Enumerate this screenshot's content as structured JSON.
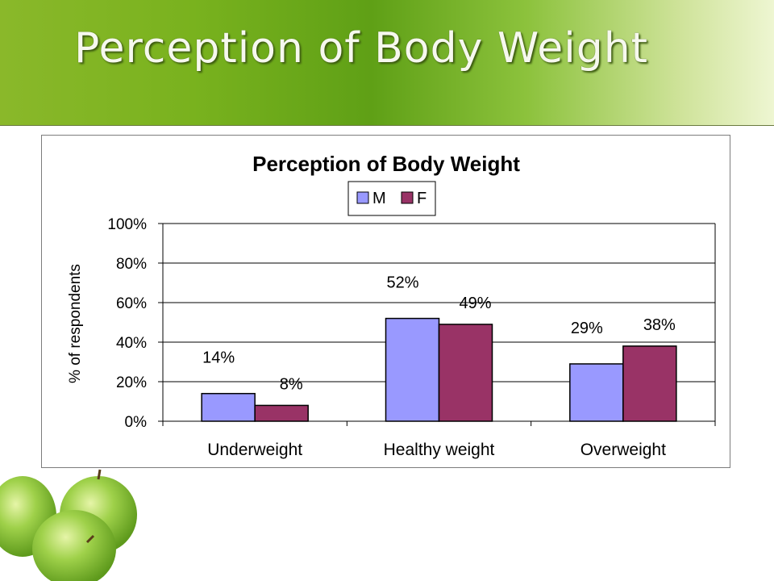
{
  "slide": {
    "title": "Perception of Body Weight"
  },
  "chart_data": {
    "type": "bar",
    "title": "Perception of Body Weight",
    "xlabel": "",
    "ylabel": "% of respondents",
    "categories": [
      "Underweight",
      "Healthy weight",
      "Overweight"
    ],
    "series": [
      {
        "name": "M",
        "values": [
          14,
          52,
          29
        ],
        "labels": [
          "14%",
          "52%",
          "29%"
        ],
        "color": "#9999ff"
      },
      {
        "name": "F",
        "values": [
          8,
          49,
          38
        ],
        "labels": [
          "8%",
          "49%",
          "38%"
        ],
        "color": "#993366"
      }
    ],
    "ylim": [
      0,
      100
    ],
    "yticks": [
      "0%",
      "20%",
      "40%",
      "60%",
      "80%",
      "100%"
    ],
    "grid": true,
    "legend": "top-center"
  },
  "colors": {
    "header_green": "#5fa016",
    "apple_green": "#8cc63e"
  }
}
